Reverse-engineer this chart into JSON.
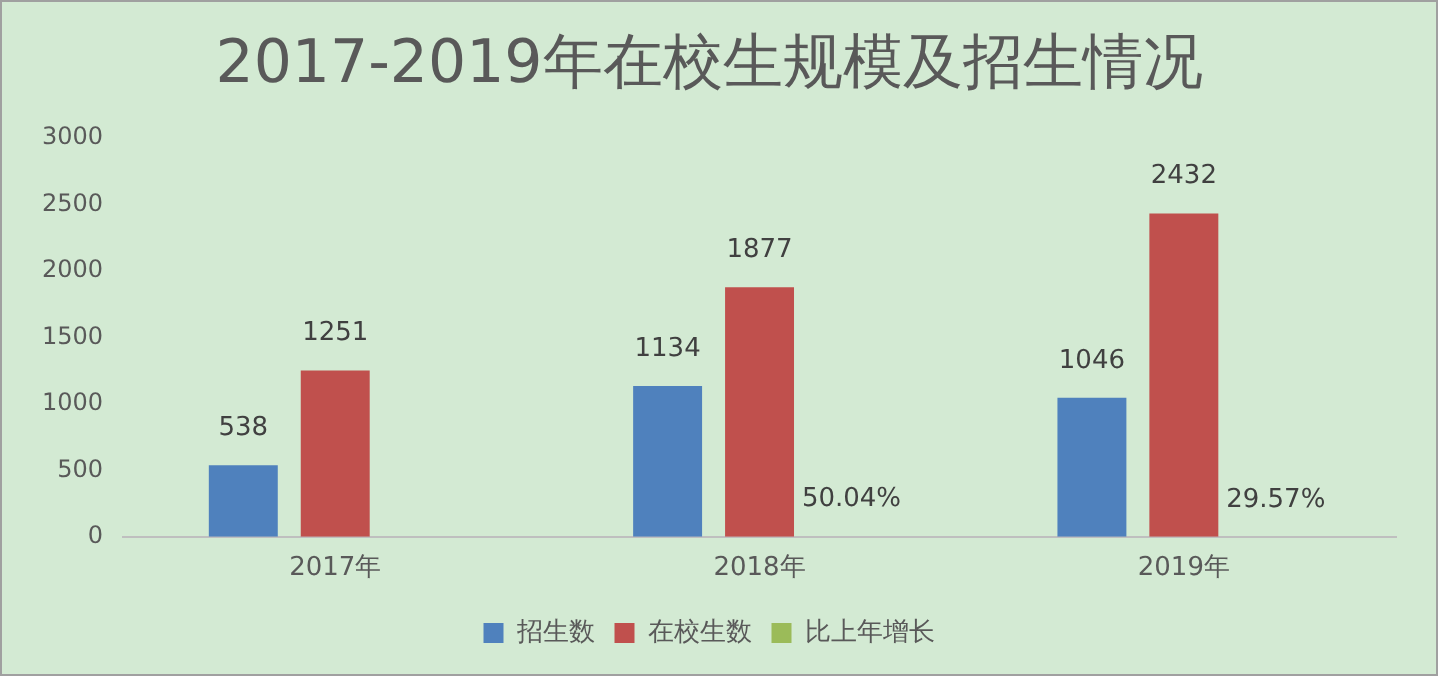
{
  "chart_data": {
    "type": "bar",
    "title": "2017-2019年在校生规模及招生情况",
    "categories": [
      "2017年",
      "2018年",
      "2019年"
    ],
    "series": [
      {
        "name": "招生数",
        "color": "#4f81bd",
        "values": [
          538,
          1134,
          1046
        ],
        "value_labels": [
          "538",
          "1134",
          "1046"
        ]
      },
      {
        "name": "在校生数",
        "color": "#c0504d",
        "values": [
          1251,
          1877,
          2432
        ],
        "value_labels": [
          "1251",
          "1877",
          "2432"
        ]
      },
      {
        "name": "比上年增长",
        "color": "#9bbb59",
        "values": [
          null,
          0.5004,
          0.2957
        ],
        "value_labels": [
          null,
          "50.04%",
          "29.57%"
        ]
      }
    ],
    "ylim": [
      0,
      3000
    ],
    "yticks": [
      0,
      500,
      1000,
      1500,
      2000,
      2500,
      3000
    ],
    "grid": false,
    "legend": "bottom"
  }
}
